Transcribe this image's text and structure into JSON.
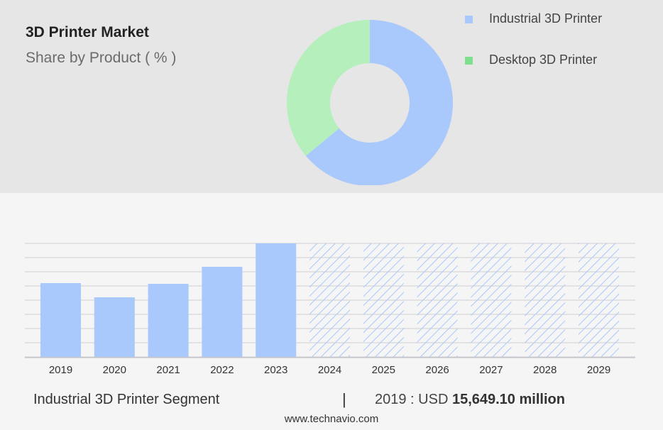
{
  "header": {
    "title": "3D Printer Market",
    "subtitle": "Share by Product ( % )"
  },
  "legend": [
    {
      "label": "Industrial 3D Printer",
      "color": "#a9c8fb"
    },
    {
      "label": "Desktop 3D Printer",
      "color": "#b4efbc"
    }
  ],
  "legend_swatch_colors": [
    "#a9c8fb",
    "#7ee08f"
  ],
  "chart_data": [
    {
      "type": "pie",
      "title": "3D Printer Market",
      "subtitle": "Share by Product ( % )",
      "categories": [
        "Industrial 3D Printer",
        "Desktop 3D Printer"
      ],
      "values": [
        64,
        36
      ],
      "colors": [
        "#a9c8fb",
        "#b4efbc"
      ],
      "donut": true,
      "legend": "top-right"
    },
    {
      "type": "bar",
      "categories": [
        "2019",
        "2020",
        "2021",
        "2022",
        "2023",
        "2024",
        "2025",
        "2026",
        "2027",
        "2028",
        "2029"
      ],
      "values": [
        5.2,
        4.2,
        5.15,
        6.35,
        8.0,
        8.0,
        8.0,
        8.0,
        8.0,
        8.0,
        8.0
      ],
      "forecast_from_index": 5,
      "ylim": [
        0,
        8
      ],
      "grid": true,
      "color": "#a9c8fb"
    }
  ],
  "footer": {
    "segment_label": "Industrial 3D Printer Segment",
    "separator": "|",
    "value_prefix": "2019 : USD",
    "value_bold": "15,649.10 million"
  },
  "source": "www.technavio.com"
}
